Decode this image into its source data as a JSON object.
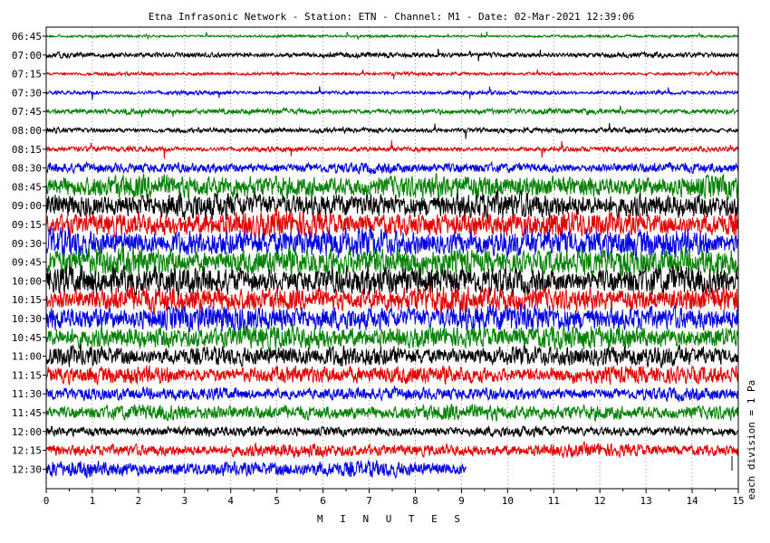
{
  "title": "Etna Infrasonic Network - Station: ETN - Channel: M1 - Date: 02-Mar-2021 12:39:06",
  "chart_data": {
    "type": "line",
    "xlabel": "M I N U T E S",
    "ylabel": "each division = 1 Pa",
    "xlim": [
      0,
      15
    ],
    "x_ticks": [
      "0",
      "1",
      "2",
      "3",
      "4",
      "5",
      "6",
      "7",
      "8",
      "9",
      "10",
      "11",
      "12",
      "13",
      "14",
      "15"
    ],
    "grid": true,
    "colors": [
      "#008000",
      "#000000",
      "#e00000",
      "#0000e0"
    ],
    "rows": [
      {
        "time": "06:45",
        "color": "#008000",
        "amplitude": 2,
        "end_minute": 15
      },
      {
        "time": "07:00",
        "color": "#000000",
        "amplitude": 4,
        "end_minute": 15
      },
      {
        "time": "07:15",
        "color": "#e00000",
        "amplitude": 2.5,
        "end_minute": 15
      },
      {
        "time": "07:30",
        "color": "#0000e0",
        "amplitude": 3,
        "end_minute": 15
      },
      {
        "time": "07:45",
        "color": "#008000",
        "amplitude": 4.5,
        "end_minute": 15
      },
      {
        "time": "08:00",
        "color": "#000000",
        "amplitude": 4,
        "end_minute": 15
      },
      {
        "time": "08:15",
        "color": "#e00000",
        "amplitude": 4,
        "end_minute": 15
      },
      {
        "time": "08:30",
        "color": "#0000e0",
        "amplitude": 8,
        "end_minute": 15
      },
      {
        "time": "08:45",
        "color": "#008000",
        "amplitude": 18,
        "end_minute": 15
      },
      {
        "time": "09:00",
        "color": "#000000",
        "amplitude": 20,
        "end_minute": 15
      },
      {
        "time": "09:15",
        "color": "#e00000",
        "amplitude": 20,
        "end_minute": 15
      },
      {
        "time": "09:30",
        "color": "#0000e0",
        "amplitude": 22,
        "end_minute": 15
      },
      {
        "time": "09:45",
        "color": "#008000",
        "amplitude": 22,
        "end_minute": 15
      },
      {
        "time": "10:00",
        "color": "#000000",
        "amplitude": 22,
        "end_minute": 15
      },
      {
        "time": "10:15",
        "color": "#e00000",
        "amplitude": 20,
        "end_minute": 15
      },
      {
        "time": "10:30",
        "color": "#0000e0",
        "amplitude": 20,
        "end_minute": 15
      },
      {
        "time": "10:45",
        "color": "#008000",
        "amplitude": 18,
        "end_minute": 15
      },
      {
        "time": "11:00",
        "color": "#000000",
        "amplitude": 16,
        "end_minute": 15
      },
      {
        "time": "11:15",
        "color": "#e00000",
        "amplitude": 14,
        "end_minute": 15
      },
      {
        "time": "11:30",
        "color": "#0000e0",
        "amplitude": 10,
        "end_minute": 15
      },
      {
        "time": "11:45",
        "color": "#008000",
        "amplitude": 12,
        "end_minute": 15
      },
      {
        "time": "12:00",
        "color": "#000000",
        "amplitude": 8,
        "end_minute": 15
      },
      {
        "time": "12:15",
        "color": "#e00000",
        "amplitude": 10,
        "end_minute": 15
      },
      {
        "time": "12:30",
        "color": "#0000e0",
        "amplitude": 12,
        "end_minute": 9.1
      }
    ]
  }
}
